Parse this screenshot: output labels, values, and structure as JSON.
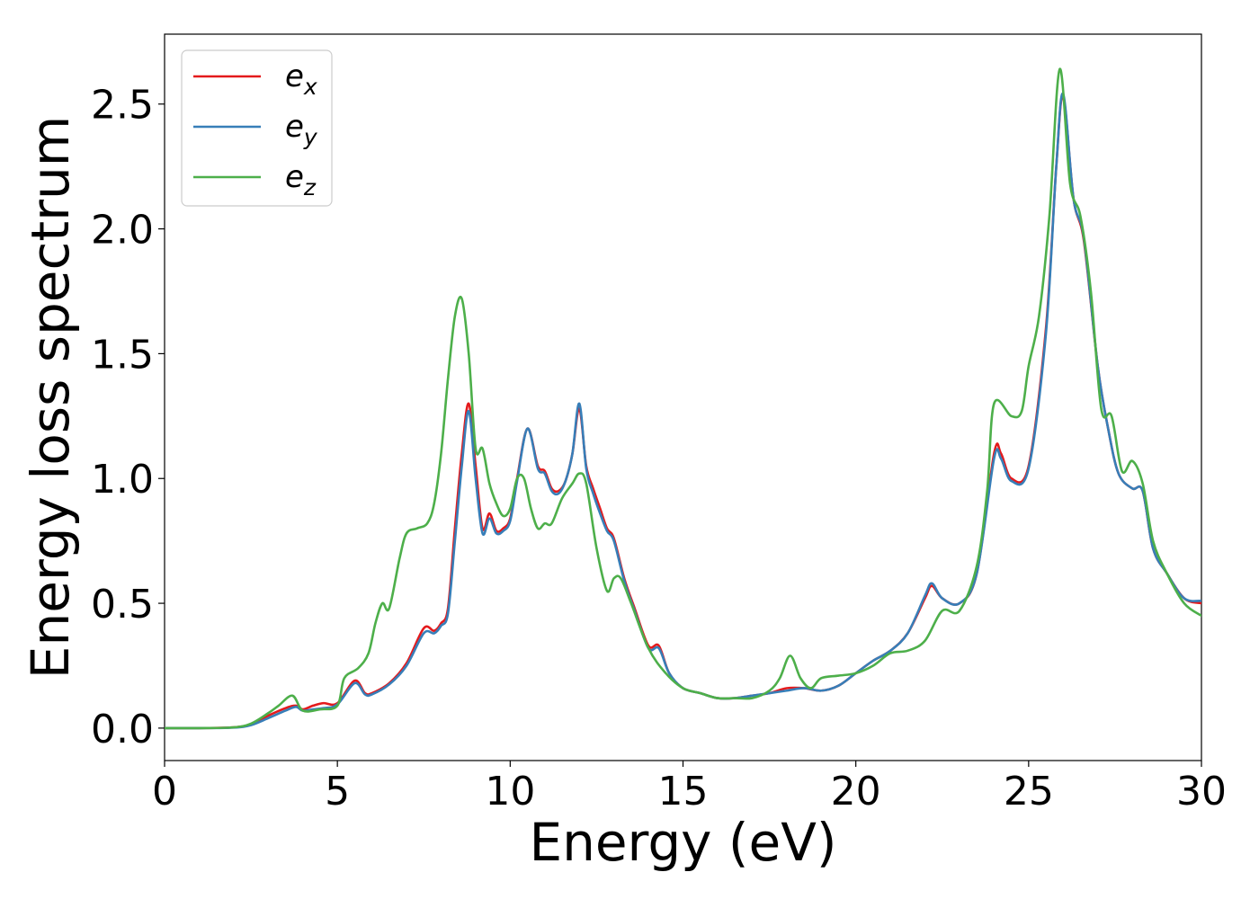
{
  "chart_data": {
    "type": "line",
    "xlabel": "Energy (eV)",
    "ylabel": "Energy loss spectrum",
    "xlim": [
      0,
      30
    ],
    "ylim": [
      -0.13,
      2.78
    ],
    "xticks": [
      0,
      5,
      10,
      15,
      20,
      25,
      30
    ],
    "xtick_labels": [
      "0",
      "5",
      "10",
      "15",
      "20",
      "25",
      "30"
    ],
    "yticks": [
      0.0,
      0.5,
      1.0,
      1.5,
      2.0,
      2.5
    ],
    "ytick_labels": [
      "0.0",
      "0.5",
      "1.0",
      "1.5",
      "2.0",
      "2.5"
    ],
    "grid": false,
    "legend_position": "top-left",
    "series": [
      {
        "name": "e_x",
        "legend_base": "e",
        "legend_sub": "x",
        "color": "#e41a1c",
        "x": [
          0,
          1,
          2,
          2.5,
          3,
          3.5,
          3.8,
          4,
          4.3,
          4.6,
          5,
          5.5,
          5.8,
          6,
          6.5,
          7,
          7.5,
          7.8,
          8,
          8.2,
          8.4,
          8.6,
          8.8,
          9,
          9.2,
          9.4,
          9.6,
          9.8,
          10,
          10.2,
          10.5,
          10.8,
          11,
          11.2,
          11.4,
          11.6,
          11.8,
          12,
          12.2,
          12.4,
          12.6,
          12.8,
          13,
          13.3,
          13.6,
          14,
          14.3,
          14.6,
          15,
          15.5,
          16,
          16.5,
          17,
          17.5,
          18,
          18.5,
          19,
          19.5,
          20,
          20.5,
          21,
          21.5,
          22,
          22.2,
          22.5,
          23,
          23.5,
          24,
          24.2,
          24.5,
          25,
          25.5,
          25.8,
          26,
          26.3,
          26.6,
          27,
          27.3,
          27.6,
          28,
          28.3,
          28.6,
          29,
          29.5,
          30
        ],
        "y": [
          0,
          0,
          0.003,
          0.015,
          0.05,
          0.08,
          0.09,
          0.075,
          0.09,
          0.1,
          0.1,
          0.19,
          0.14,
          0.14,
          0.18,
          0.26,
          0.4,
          0.39,
          0.42,
          0.48,
          0.8,
          1.1,
          1.3,
          1.05,
          0.8,
          0.86,
          0.79,
          0.8,
          0.84,
          1.0,
          1.2,
          1.05,
          1.03,
          0.96,
          0.95,
          0.99,
          1.1,
          1.28,
          1.05,
          0.96,
          0.88,
          0.8,
          0.76,
          0.6,
          0.48,
          0.33,
          0.33,
          0.22,
          0.16,
          0.14,
          0.12,
          0.12,
          0.13,
          0.14,
          0.16,
          0.16,
          0.15,
          0.17,
          0.22,
          0.27,
          0.31,
          0.38,
          0.52,
          0.57,
          0.52,
          0.5,
          0.62,
          1.1,
          1.1,
          1.0,
          1.05,
          1.6,
          2.25,
          2.53,
          2.12,
          1.95,
          1.45,
          1.2,
          1.02,
          0.96,
          0.95,
          0.72,
          0.62,
          0.52,
          0.5
        ]
      },
      {
        "name": "e_y",
        "legend_base": "e",
        "legend_sub": "y",
        "color": "#377eb8",
        "x": [
          0,
          1,
          2,
          2.5,
          3,
          3.5,
          3.8,
          4,
          4.3,
          4.6,
          5,
          5.5,
          5.8,
          6,
          6.5,
          7,
          7.5,
          7.8,
          8,
          8.2,
          8.4,
          8.6,
          8.8,
          9,
          9.2,
          9.4,
          9.6,
          9.8,
          10,
          10.2,
          10.5,
          10.8,
          11,
          11.2,
          11.4,
          11.6,
          11.8,
          12,
          12.2,
          12.4,
          12.6,
          12.8,
          13,
          13.3,
          13.6,
          14,
          14.3,
          14.6,
          15,
          15.5,
          16,
          16.5,
          17,
          17.5,
          18,
          18.5,
          19,
          19.5,
          20,
          20.5,
          21,
          21.5,
          22,
          22.2,
          22.5,
          23,
          23.5,
          24,
          24.2,
          24.5,
          25,
          25.5,
          25.8,
          26,
          26.3,
          26.6,
          27,
          27.3,
          27.6,
          28,
          28.3,
          28.6,
          29,
          29.5,
          30
        ],
        "y": [
          0,
          0,
          0.002,
          0.012,
          0.04,
          0.07,
          0.085,
          0.07,
          0.075,
          0.08,
          0.095,
          0.18,
          0.135,
          0.135,
          0.175,
          0.25,
          0.38,
          0.38,
          0.41,
          0.46,
          0.75,
          1.05,
          1.27,
          1.0,
          0.78,
          0.84,
          0.78,
          0.79,
          0.83,
          0.99,
          1.2,
          1.04,
          1.02,
          0.95,
          0.94,
          0.99,
          1.1,
          1.3,
          1.04,
          0.94,
          0.86,
          0.79,
          0.75,
          0.59,
          0.47,
          0.32,
          0.32,
          0.22,
          0.16,
          0.14,
          0.12,
          0.12,
          0.13,
          0.14,
          0.15,
          0.16,
          0.15,
          0.17,
          0.22,
          0.27,
          0.31,
          0.38,
          0.53,
          0.58,
          0.52,
          0.5,
          0.62,
          1.08,
          1.08,
          0.99,
          1.04,
          1.58,
          2.25,
          2.54,
          2.12,
          1.96,
          1.45,
          1.2,
          1.02,
          0.96,
          0.95,
          0.72,
          0.62,
          0.52,
          0.51
        ]
      },
      {
        "name": "e_z",
        "legend_base": "e",
        "legend_sub": "z",
        "color": "#4daf4a",
        "x": [
          0,
          1,
          2,
          2.5,
          3,
          3.3,
          3.7,
          4,
          4.5,
          5,
          5.2,
          5.6,
          5.9,
          6.1,
          6.3,
          6.5,
          6.8,
          7,
          7.3,
          7.6,
          7.8,
          8,
          8.2,
          8.4,
          8.6,
          8.8,
          9,
          9.2,
          9.4,
          9.6,
          9.8,
          10,
          10.2,
          10.4,
          10.6,
          10.8,
          11,
          11.2,
          11.5,
          11.8,
          12,
          12.2,
          12.5,
          12.8,
          13,
          13.2,
          13.5,
          14,
          14.5,
          15,
          15.5,
          16,
          16.5,
          17,
          17.5,
          17.8,
          18.1,
          18.4,
          18.7,
          19,
          19.5,
          20,
          20.5,
          21,
          21.5,
          22,
          22.5,
          23,
          23.5,
          23.8,
          24,
          24.5,
          24.8,
          25,
          25.3,
          25.6,
          25.9,
          26.2,
          26.5,
          26.8,
          27.1,
          27.4,
          27.7,
          28,
          28.3,
          28.6,
          29,
          29.5,
          30
        ],
        "y": [
          0,
          0,
          0.003,
          0.018,
          0.06,
          0.09,
          0.13,
          0.07,
          0.075,
          0.09,
          0.2,
          0.24,
          0.3,
          0.42,
          0.5,
          0.48,
          0.68,
          0.78,
          0.8,
          0.82,
          0.9,
          1.1,
          1.4,
          1.65,
          1.72,
          1.5,
          1.12,
          1.12,
          0.98,
          0.9,
          0.85,
          0.88,
          1.0,
          1.0,
          0.88,
          0.8,
          0.82,
          0.82,
          0.92,
          0.98,
          1.02,
          0.98,
          0.72,
          0.55,
          0.6,
          0.6,
          0.5,
          0.32,
          0.22,
          0.16,
          0.14,
          0.12,
          0.12,
          0.12,
          0.15,
          0.2,
          0.29,
          0.2,
          0.16,
          0.2,
          0.21,
          0.22,
          0.25,
          0.3,
          0.31,
          0.35,
          0.47,
          0.47,
          0.65,
          0.95,
          1.3,
          1.25,
          1.27,
          1.45,
          1.65,
          2.05,
          2.64,
          2.18,
          2.05,
          1.75,
          1.28,
          1.25,
          1.03,
          1.07,
          0.98,
          0.75,
          0.62,
          0.5,
          0.45
        ]
      }
    ]
  }
}
